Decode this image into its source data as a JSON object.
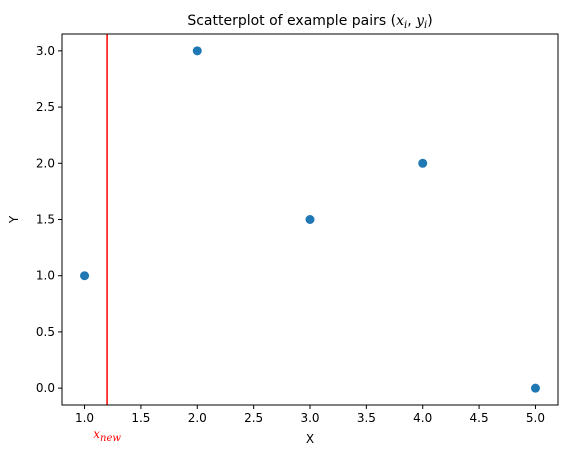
{
  "chart_data": {
    "type": "scatter",
    "title": {
      "prefix": "Scatterplot of example pairs (",
      "x_var": "x",
      "x_sub": "i",
      "separator": ", ",
      "y_var": "y",
      "y_sub": "i",
      "suffix": ")"
    },
    "xlabel": "X",
    "ylabel": "Y",
    "xlim": [
      0.8,
      5.2
    ],
    "ylim": [
      -0.15,
      3.15
    ],
    "xticks": [
      1.0,
      1.5,
      2.0,
      2.5,
      3.0,
      3.5,
      4.0,
      4.5,
      5.0
    ],
    "yticks": [
      0.0,
      0.5,
      1.0,
      1.5,
      2.0,
      2.5,
      3.0
    ],
    "xtick_labels": [
      "1.0",
      "1.5",
      "2.0",
      "2.5",
      "3.0",
      "3.5",
      "4.0",
      "4.5",
      "5.0"
    ],
    "ytick_labels": [
      "0.0",
      "0.5",
      "1.0",
      "1.5",
      "2.0",
      "2.5",
      "3.0"
    ],
    "grid": false,
    "series": [
      {
        "x": [
          1,
          2,
          3,
          4,
          5
        ],
        "y": [
          1,
          3,
          1.5,
          2,
          0
        ],
        "color": "#1f77b4"
      }
    ],
    "vlines": [
      {
        "x": 1.2,
        "color": "#ff0000",
        "label_var": "x",
        "label_sub": "new"
      }
    ]
  }
}
